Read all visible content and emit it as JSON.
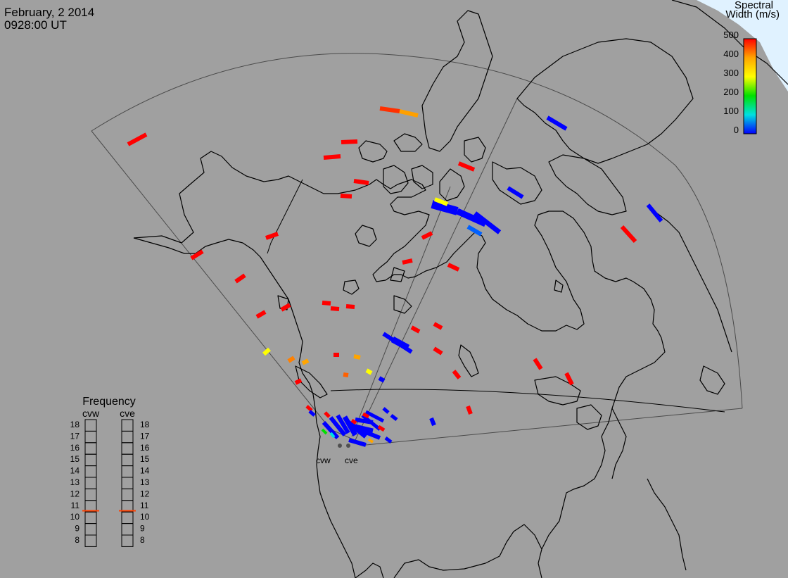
{
  "header": {
    "date": "February, 2 2014",
    "time": "0928:00 UT"
  },
  "colorbar": {
    "title_line1": "Spectral",
    "title_line2": "Width (m/s)",
    "ticks": [
      "500",
      "400",
      "300",
      "200",
      "100",
      "0"
    ],
    "stops": [
      "#ff0000",
      "#ffa500",
      "#ffff00",
      "#00e000",
      "#00e0e0",
      "#0000ff"
    ]
  },
  "frequency_panel": {
    "title": "Frequency",
    "radar_left": "cvw",
    "radar_right": "cve",
    "levels": [
      "18",
      "17",
      "16",
      "15",
      "14",
      "13",
      "12",
      "11",
      "10",
      "9",
      "8"
    ],
    "selected_mhz": 10.6,
    "marker_color": "#ff4000"
  },
  "sites": {
    "west_label": "cvw",
    "east_label": "cve"
  },
  "colors": {
    "background": "#a0a0a0",
    "coast": "#000000",
    "field_of_view": "#505050",
    "snow": "#e0f2ff"
  }
}
